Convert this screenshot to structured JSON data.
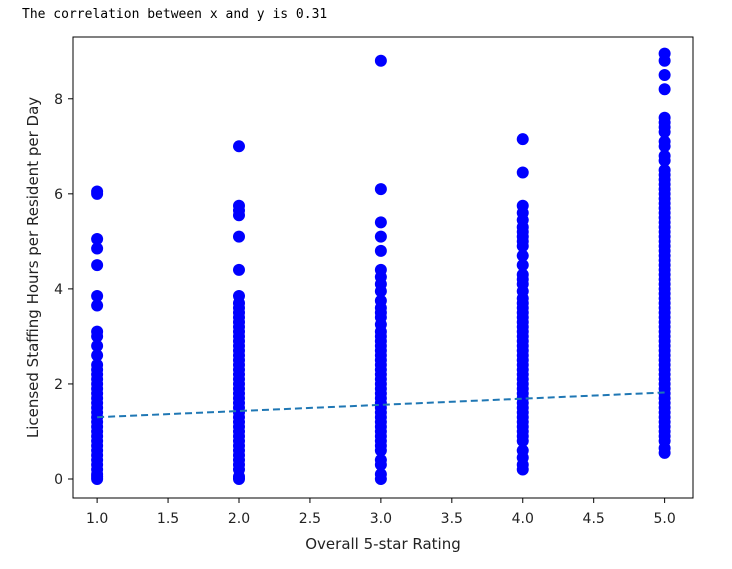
{
  "output_text": "The correlation between x and y is 0.31",
  "chart_data": {
    "type": "scatter",
    "xlabel": "Overall 5-star Rating",
    "ylabel": "Licensed Staffing Hours per Resident per Day",
    "xlim": [
      0.83,
      5.2
    ],
    "ylim": [
      -0.4,
      9.3
    ],
    "x_ticks": [
      1.0,
      1.5,
      2.0,
      2.5,
      3.0,
      3.5,
      4.0,
      4.5,
      5.0
    ],
    "x_tick_labels": [
      "1.0",
      "1.5",
      "2.0",
      "2.5",
      "3.0",
      "3.5",
      "4.0",
      "4.5",
      "5.0"
    ],
    "y_ticks": [
      0,
      2,
      4,
      6,
      8
    ],
    "y_tick_labels": [
      "0",
      "2",
      "4",
      "6",
      "8"
    ],
    "grid": false,
    "point_color": "#0000ff",
    "trend_color": "#1f77b4",
    "series": [
      {
        "values_by_x": [
          {
            "x": 1.0,
            "y": [
              0.0,
              0.05,
              0.1,
              0.2,
              0.3,
              0.4,
              0.5,
              0.6,
              0.7,
              0.8,
              0.9,
              1.0,
              1.1,
              1.2,
              1.3,
              1.4,
              1.5,
              1.6,
              1.7,
              1.8,
              1.9,
              2.0,
              2.1,
              2.2,
              2.3,
              2.4,
              2.6,
              2.8,
              3.0,
              3.1,
              3.65,
              3.85,
              4.5,
              4.85,
              5.05,
              6.0,
              6.05
            ]
          },
          {
            "x": 2.0,
            "y": [
              0.0,
              0.05,
              0.2,
              0.3,
              0.4,
              0.5,
              0.6,
              0.7,
              0.8,
              0.9,
              1.0,
              1.1,
              1.2,
              1.3,
              1.4,
              1.5,
              1.6,
              1.7,
              1.8,
              1.9,
              2.0,
              2.1,
              2.2,
              2.3,
              2.4,
              2.5,
              2.6,
              2.7,
              2.8,
              2.9,
              3.0,
              3.1,
              3.2,
              3.3,
              3.4,
              3.5,
              3.6,
              3.7,
              3.85,
              4.4,
              5.1,
              5.55,
              5.65,
              5.75,
              7.0
            ]
          },
          {
            "x": 3.0,
            "y": [
              0.0,
              0.1,
              0.3,
              0.4,
              0.6,
              0.7,
              0.8,
              0.9,
              1.0,
              1.1,
              1.2,
              1.3,
              1.4,
              1.5,
              1.6,
              1.7,
              1.8,
              1.9,
              2.0,
              2.1,
              2.2,
              2.3,
              2.4,
              2.5,
              2.6,
              2.7,
              2.8,
              2.9,
              3.0,
              3.1,
              3.25,
              3.4,
              3.5,
              3.6,
              3.75,
              3.95,
              4.1,
              4.25,
              4.4,
              4.8,
              5.1,
              5.4,
              6.1,
              8.8
            ]
          },
          {
            "x": 4.0,
            "y": [
              0.2,
              0.3,
              0.45,
              0.6,
              0.8,
              0.9,
              1.0,
              1.1,
              1.2,
              1.3,
              1.4,
              1.5,
              1.6,
              1.7,
              1.8,
              1.9,
              2.0,
              2.1,
              2.2,
              2.3,
              2.4,
              2.5,
              2.6,
              2.7,
              2.8,
              2.9,
              3.0,
              3.1,
              3.2,
              3.3,
              3.4,
              3.5,
              3.6,
              3.7,
              3.8,
              3.95,
              4.1,
              4.2,
              4.3,
              4.5,
              4.7,
              4.9,
              5.0,
              5.1,
              5.2,
              5.3,
              5.45,
              5.6,
              5.75,
              6.45,
              7.15
            ]
          },
          {
            "x": 5.0,
            "y": [
              0.55,
              0.65,
              0.8,
              0.9,
              1.0,
              1.1,
              1.2,
              1.3,
              1.4,
              1.5,
              1.6,
              1.7,
              1.8,
              1.9,
              2.0,
              2.1,
              2.2,
              2.3,
              2.4,
              2.5,
              2.6,
              2.7,
              2.8,
              2.9,
              3.0,
              3.1,
              3.2,
              3.3,
              3.4,
              3.5,
              3.6,
              3.7,
              3.8,
              3.9,
              4.0,
              4.1,
              4.2,
              4.3,
              4.4,
              4.5,
              4.6,
              4.7,
              4.8,
              4.9,
              5.0,
              5.1,
              5.2,
              5.3,
              5.4,
              5.5,
              5.6,
              5.7,
              5.8,
              5.9,
              6.0,
              6.1,
              6.2,
              6.3,
              6.4,
              6.5,
              6.7,
              6.8,
              7.0,
              7.1,
              7.3,
              7.4,
              7.5,
              7.6,
              8.2,
              8.5,
              8.8,
              8.95
            ]
          }
        ]
      }
    ],
    "trend_line": {
      "x": [
        1.0,
        5.0
      ],
      "y": [
        1.3,
        1.82
      ],
      "style": "dashed"
    }
  }
}
